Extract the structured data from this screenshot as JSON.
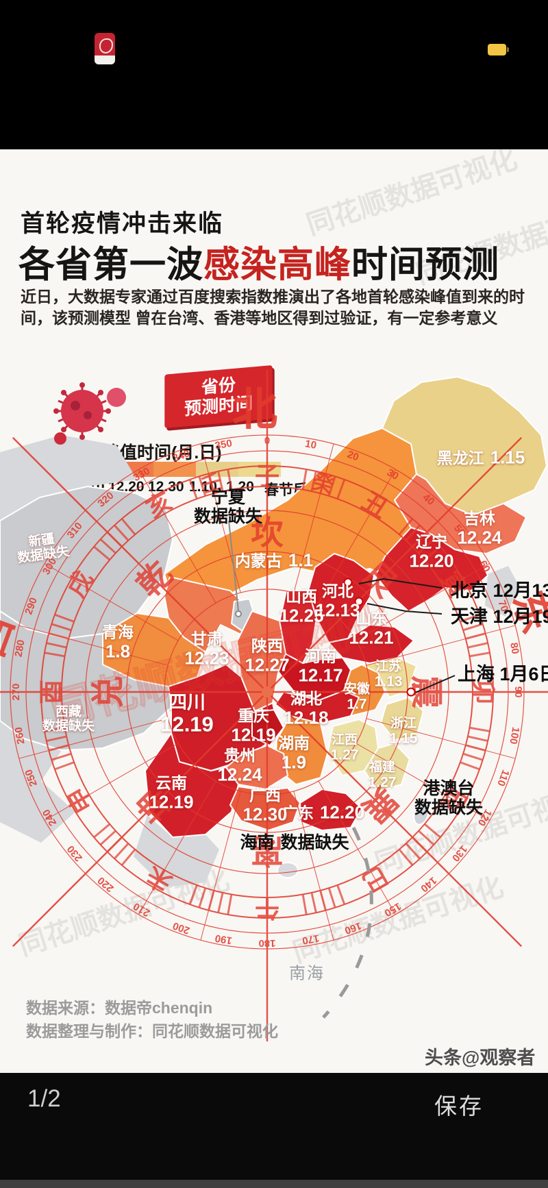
{
  "header": {
    "kicker": "首轮疫情冲击来临",
    "title_prefix": "各省第一波",
    "title_highlight": "感染高峰",
    "title_suffix": "时间预测",
    "description_line1": "近日，大数据专家通过百度搜索指数推演出了各地首轮感染峰值到来的时间，该预测模型",
    "description_line2": "曾在台湾、香港等地区得到过验证，有一定参考意义"
  },
  "badge": {
    "line1": "省份",
    "line2": "预测时间"
  },
  "legend": {
    "title": "感染峰值时间(月.日)",
    "stops": [
      {
        "label": "12.10",
        "color": "#ce1a26"
      },
      {
        "label": "12.20",
        "color": "#ee7a4c"
      },
      {
        "label": "12.30",
        "color": "#f2924d"
      },
      {
        "label": "1.10",
        "color": "#e7cf8a"
      },
      {
        "label": "1.20",
        "color": "#ecd98f"
      },
      {
        "label": "春节后",
        "color": "#f0e3a6"
      }
    ]
  },
  "compass": {
    "north": "北",
    "east": "东",
    "west": "西",
    "bagua": [
      "坎",
      "艮",
      "震",
      "巽",
      "离",
      "坤",
      "兑",
      "乾"
    ],
    "branches": [
      "子",
      "丑",
      "寅",
      "卯",
      "辰",
      "巳",
      "午",
      "未",
      "申",
      "酉",
      "戌",
      "亥"
    ],
    "stems": [
      "壬",
      "癸"
    ],
    "degree_labels": [
      "0",
      "10",
      "20",
      "30",
      "40",
      "50",
      "60",
      "70",
      "80",
      "90",
      "100",
      "110",
      "120",
      "130",
      "140",
      "150",
      "160",
      "170",
      "180",
      "190",
      "200",
      "210",
      "220",
      "230",
      "240",
      "250",
      "260",
      "270",
      "280",
      "290",
      "300",
      "310",
      "320",
      "330",
      "340",
      "350"
    ]
  },
  "map": {
    "provinces": [
      {
        "name": "新疆",
        "value": "数据缺失",
        "color": "#c9cbce"
      },
      {
        "name": "西藏",
        "value": "数据缺失",
        "color": "#c9cbce"
      },
      {
        "name": "青海",
        "value": "1.8",
        "color": "#f18d3e"
      },
      {
        "name": "甘肃",
        "value": "12.23",
        "color": "#ed7a50"
      },
      {
        "name": "宁夏",
        "value": "数据缺失",
        "color": "#c6c9cd"
      },
      {
        "name": "内蒙古",
        "value": "1.1",
        "color": "#f5943c"
      },
      {
        "name": "黑龙江",
        "value": "1.15",
        "color": "#ead189"
      },
      {
        "name": "吉林",
        "value": "12.24",
        "color": "#ef7558"
      },
      {
        "name": "辽宁",
        "value": "12.20",
        "color": "#d6222b"
      },
      {
        "name": "河北",
        "value": "12.13",
        "color": "#d42028"
      },
      {
        "name": "山西",
        "value": "12.25",
        "color": "#d8262e"
      },
      {
        "name": "山东",
        "value": "12.21",
        "color": "#d2202a"
      },
      {
        "name": "河南",
        "value": "12.17",
        "color": "#c9151f"
      },
      {
        "name": "陕西",
        "value": "12.27",
        "color": "#ec6f4d"
      },
      {
        "name": "四川",
        "value": "12.19",
        "color": "#cf1e27"
      },
      {
        "name": "重庆",
        "value": "12.19",
        "color": "#c2161f"
      },
      {
        "name": "湖北",
        "value": "12.18",
        "color": "#d01f27"
      },
      {
        "name": "安徽",
        "value": "1.7",
        "color": "#f0903d"
      },
      {
        "name": "江苏",
        "value": "1.13",
        "color": "#eedd9a"
      },
      {
        "name": "浙江",
        "value": "1.15",
        "color": "#e9d795"
      },
      {
        "name": "江西",
        "value": "1.27",
        "color": "#ece1a4"
      },
      {
        "name": "福建",
        "value": "1.27",
        "color": "#e8dca0"
      },
      {
        "name": "湖南",
        "value": "1.9",
        "color": "#f18c3c"
      },
      {
        "name": "贵州",
        "value": "12.24",
        "color": "#ee6f50"
      },
      {
        "name": "云南",
        "value": "12.19",
        "color": "#d2202a"
      },
      {
        "name": "广西",
        "value": "12.30",
        "color": "#e7593c"
      },
      {
        "name": "广东",
        "value": "12.20",
        "color": "#d2202a"
      },
      {
        "name": "海南",
        "value": "数据缺失",
        "color": "#d8dade"
      },
      {
        "name": "港澳台",
        "value": "数据缺失",
        "color": "#cfd3d7"
      }
    ],
    "callouts": [
      {
        "name": "北京",
        "value": "12月13日"
      },
      {
        "name": "天津",
        "value": "12月19日"
      },
      {
        "name": "上海",
        "value": "1月6日"
      }
    ],
    "sea_label": "南海"
  },
  "watermarks": {
    "text": "同花顺数据可视化"
  },
  "footer": {
    "source": "数据来源：数据帝chenqin",
    "credit": "数据整理与制作：同花顺数据可视化",
    "brand": "头条@观察者网"
  },
  "viewer": {
    "page_indicator": "1/2",
    "save_label": "保存"
  },
  "chart_data": {
    "type": "heatmap",
    "title": "各省第一波感染高峰时间预测",
    "subtitle": "首轮疫情冲击来临",
    "unit": "感染峰值时间(月.日)",
    "legend_stops": [
      "12.10",
      "12.20",
      "12.30",
      "1.10",
      "1.20",
      "春节后"
    ],
    "missing_label": "数据缺失",
    "categories": [
      "北京",
      "天津",
      "河北",
      "山西",
      "内蒙古",
      "辽宁",
      "吉林",
      "黑龙江",
      "上海",
      "江苏",
      "浙江",
      "安徽",
      "福建",
      "江西",
      "山东",
      "河南",
      "湖北",
      "湖南",
      "广东",
      "广西",
      "海南",
      "重庆",
      "四川",
      "贵州",
      "云南",
      "西藏",
      "陕西",
      "甘肃",
      "青海",
      "宁夏",
      "新疆",
      "港澳台"
    ],
    "values": [
      "12月13日",
      "12月19日",
      "12.13",
      "12.25",
      "1.1",
      "12.20",
      "12.24",
      "1.15",
      "1月6日",
      "1.13",
      "1.15",
      "1.7",
      "1.27",
      "1.27",
      "12.21",
      "12.17",
      "12.18",
      "1.9",
      "12.20",
      "12.30",
      "数据缺失",
      "12.19",
      "12.19",
      "12.24",
      "12.19",
      "数据缺失",
      "12.27",
      "12.23",
      "1.8",
      "数据缺失",
      "数据缺失",
      "数据缺失"
    ]
  }
}
